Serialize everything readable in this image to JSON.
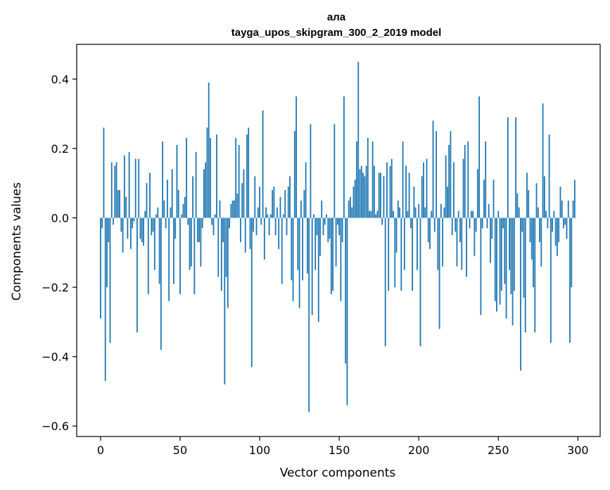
{
  "chart_data": {
    "type": "bar",
    "title": "ала",
    "subtitle": "tayga_upos_skipgram_300_2_2019 model",
    "xlabel": "Vector components",
    "ylabel": "Components values",
    "xlim": [
      -15,
      314
    ],
    "ylim": [
      -0.63,
      0.5
    ],
    "xticks": [
      0,
      50,
      100,
      150,
      200,
      250,
      300
    ],
    "xtick_labels": [
      "0",
      "50",
      "100",
      "150",
      "200",
      "250",
      "300"
    ],
    "yticks": [
      -0.6,
      -0.4,
      -0.2,
      0.0,
      0.2,
      0.4
    ],
    "ytick_labels": [
      "−0.6",
      "−0.4",
      "−0.2",
      "0.0",
      "0.2",
      "0.4"
    ],
    "grid": false,
    "bar_color": "#1f77b4",
    "x_start": 0,
    "values": [
      -0.29,
      -0.03,
      0.26,
      -0.47,
      -0.2,
      -0.07,
      -0.36,
      0.16,
      -0.02,
      0.15,
      0.16,
      0.08,
      0.08,
      -0.04,
      -0.1,
      0.18,
      0.06,
      -0.06,
      0.19,
      -0.09,
      -0.03,
      -0.01,
      0.17,
      -0.33,
      0.17,
      -0.06,
      -0.07,
      -0.08,
      0.02,
      0.1,
      -0.22,
      0.13,
      -0.05,
      -0.04,
      -0.15,
      0.01,
      0.03,
      -0.19,
      -0.38,
      0.22,
      0.05,
      -0.03,
      0.11,
      -0.24,
      0.03,
      0.14,
      -0.19,
      -0.06,
      0.21,
      0.08,
      -0.22,
      0.01,
      0.04,
      0.06,
      0.23,
      -0.02,
      -0.15,
      -0.14,
      0.12,
      -0.22,
      0.19,
      -0.07,
      -0.07,
      -0.14,
      -0.03,
      0.14,
      0.16,
      0.26,
      0.39,
      0.23,
      -0.02,
      -0.05,
      0.01,
      0.24,
      -0.17,
      0.05,
      -0.21,
      -0.07,
      -0.48,
      -0.17,
      -0.26,
      -0.03,
      0.04,
      0.05,
      0.05,
      0.23,
      0.07,
      0.21,
      -0.07,
      0.1,
      0.14,
      -0.1,
      0.24,
      0.26,
      -0.09,
      -0.43,
      -0.04,
      0.12,
      -0.05,
      0.03,
      0.09,
      -0.02,
      0.31,
      -0.12,
      0.03,
      0.01,
      -0.05,
      0.01,
      0.08,
      0.09,
      -0.05,
      0.03,
      -0.09,
      0.06,
      -0.19,
      0.01,
      0.08,
      -0.05,
      0.09,
      0.12,
      -0.18,
      -0.24,
      0.25,
      0.35,
      -0.15,
      -0.26,
      0.05,
      -0.18,
      0.08,
      0.16,
      -0.16,
      -0.56,
      0.27,
      -0.28,
      0.01,
      -0.15,
      -0.05,
      -0.3,
      -0.11,
      0.05,
      -0.05,
      -0.02,
      0.01,
      -0.07,
      -0.06,
      -0.22,
      -0.21,
      0.27,
      -0.14,
      -0.02,
      -0.05,
      -0.24,
      -0.07,
      0.35,
      -0.42,
      -0.54,
      0.05,
      0.06,
      0.03,
      0.09,
      0.11,
      0.22,
      0.45,
      0.14,
      0.15,
      0.13,
      0.12,
      0.15,
      0.23,
      0.02,
      0.02,
      0.22,
      0.15,
      0.01,
      0.02,
      0.13,
      0.13,
      -0.02,
      0.12,
      -0.37,
      0.16,
      -0.21,
      0.15,
      0.17,
      0.02,
      -0.2,
      -0.1,
      0.05,
      0.03,
      -0.21,
      0.22,
      -0.15,
      0.15,
      0.02,
      0.13,
      -0.03,
      -0.21,
      0.09,
      0.03,
      -0.15,
      0.04,
      -0.37,
      0.12,
      0.16,
      0.03,
      0.17,
      -0.07,
      -0.09,
      0.02,
      0.28,
      -0.04,
      0.25,
      -0.15,
      -0.32,
      0.04,
      -0.14,
      0.03,
      0.18,
      0.09,
      0.21,
      0.25,
      -0.05,
      0.16,
      -0.04,
      -0.14,
      0.02,
      -0.07,
      -0.15,
      0.17,
      0.21,
      -0.17,
      0.22,
      -0.03,
      0.02,
      0.02,
      -0.11,
      -0.04,
      0.14,
      0.35,
      -0.28,
      -0.03,
      0.11,
      0.22,
      -0.03,
      0.04,
      -0.13,
      -0.06,
      0.11,
      -0.24,
      -0.27,
      0.02,
      -0.25,
      -0.21,
      -0.03,
      -0.19,
      -0.29,
      0.29,
      -0.15,
      -0.22,
      -0.31,
      -0.21,
      0.29,
      0.07,
      0.03,
      -0.44,
      -0.04,
      -0.23,
      -0.33,
      0.13,
      0.08,
      -0.07,
      -0.12,
      -0.2,
      -0.33,
      0.1,
      0.03,
      -0.07,
      -0.14,
      0.33,
      0.12,
      0.02,
      -0.03,
      0.24,
      -0.36,
      -0.04,
      0.02,
      -0.08,
      -0.11,
      -0.07,
      0.09,
      0.05,
      -0.03,
      -0.02,
      -0.06,
      0.05,
      -0.36,
      -0.2,
      0.05,
      0.11,
      0.0
    ]
  }
}
